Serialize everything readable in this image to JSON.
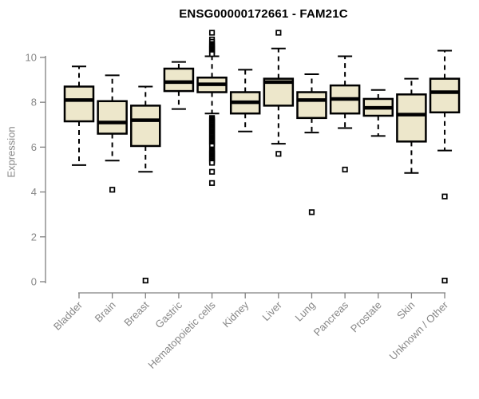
{
  "chart_data": {
    "type": "boxplot",
    "title": "ENSG00000172661 - FAM21C",
    "xlabel": "",
    "ylabel": "Expression",
    "yticks": [
      0,
      2,
      4,
      6,
      8,
      10
    ],
    "ylim": [
      0,
      11.3
    ],
    "grid": false,
    "legend": "none",
    "categories": [
      "Bladder",
      "Brain",
      "Breast",
      "Gastric",
      "Hematopoietic cells",
      "Kidney",
      "Liver",
      "Lung",
      "Pancreas",
      "Prostate",
      "Skin",
      "Unknown / Other"
    ],
    "boxes": [
      {
        "category": "Bladder",
        "whisker_low": 5.2,
        "q1": 7.15,
        "median": 8.1,
        "q3": 8.7,
        "whisker_high": 9.6,
        "outliers": []
      },
      {
        "category": "Brain",
        "whisker_low": 5.4,
        "q1": 6.6,
        "median": 7.1,
        "q3": 8.05,
        "whisker_high": 9.2,
        "outliers": [
          4.1
        ]
      },
      {
        "category": "Breast",
        "whisker_low": 4.9,
        "q1": 6.05,
        "median": 7.2,
        "q3": 7.85,
        "whisker_high": 8.7,
        "outliers": [
          0.05
        ]
      },
      {
        "category": "Gastric",
        "whisker_low": 7.7,
        "q1": 8.5,
        "median": 8.9,
        "q3": 9.5,
        "whisker_high": 9.8,
        "outliers": []
      },
      {
        "category": "Hematopoietic cells",
        "whisker_low": 7.5,
        "q1": 8.45,
        "median": 8.8,
        "q3": 9.1,
        "whisker_high": 10.05,
        "outliers": [
          11.1,
          10.8,
          10.7,
          10.6,
          10.55,
          10.5,
          10.45,
          10.4,
          10.35,
          10.3,
          10.25,
          10.2,
          10.15,
          7.3,
          7.25,
          7.2,
          7.15,
          7.1,
          7.05,
          7.0,
          6.95,
          6.9,
          6.85,
          6.8,
          6.75,
          6.7,
          6.65,
          6.6,
          6.55,
          6.5,
          6.45,
          6.4,
          6.35,
          6.3,
          6.25,
          6.2,
          6.15,
          6.1,
          6.05,
          5.9,
          5.85,
          5.8,
          5.75,
          5.7,
          5.65,
          5.6,
          5.55,
          5.5,
          5.45,
          5.4,
          5.35,
          5.3,
          4.9,
          4.4
        ]
      },
      {
        "category": "Kidney",
        "whisker_low": 6.7,
        "q1": 7.5,
        "median": 8.0,
        "q3": 8.45,
        "whisker_high": 9.45,
        "outliers": []
      },
      {
        "category": "Liver",
        "whisker_low": 6.15,
        "q1": 7.85,
        "median": 8.9,
        "q3": 9.05,
        "whisker_high": 10.4,
        "outliers": [
          11.1,
          5.7
        ]
      },
      {
        "category": "Lung",
        "whisker_low": 6.65,
        "q1": 7.3,
        "median": 8.1,
        "q3": 8.45,
        "whisker_high": 9.25,
        "outliers": [
          3.1
        ]
      },
      {
        "category": "Pancreas",
        "whisker_low": 6.85,
        "q1": 7.5,
        "median": 8.15,
        "q3": 8.75,
        "whisker_high": 10.05,
        "outliers": [
          5.0
        ]
      },
      {
        "category": "Prostate",
        "whisker_low": 6.5,
        "q1": 7.4,
        "median": 7.75,
        "q3": 8.15,
        "whisker_high": 8.55,
        "outliers": []
      },
      {
        "category": "Skin",
        "whisker_low": 4.85,
        "q1": 6.25,
        "median": 7.45,
        "q3": 8.35,
        "whisker_high": 9.05,
        "outliers": []
      },
      {
        "category": "Unknown / Other",
        "whisker_low": 5.85,
        "q1": 7.55,
        "median": 8.45,
        "q3": 9.05,
        "whisker_high": 10.3,
        "outliers": [
          3.8,
          0.05
        ]
      }
    ],
    "colors": {
      "box_fill": "#EDE7CB",
      "box_stroke": "#000000",
      "median": "#000000",
      "axis": "#808080",
      "tick_label": "#878787",
      "title": "#000000",
      "background": "#ffffff"
    }
  }
}
